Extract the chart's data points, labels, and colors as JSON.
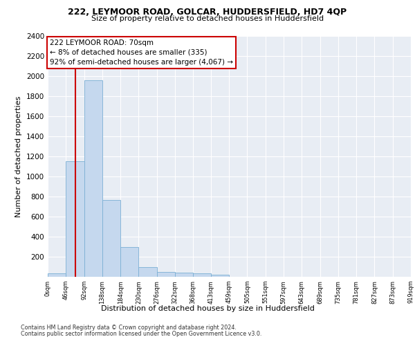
{
  "title_line1": "222, LEYMOOR ROAD, GOLCAR, HUDDERSFIELD, HD7 4QP",
  "title_line2": "Size of property relative to detached houses in Huddersfield",
  "xlabel": "Distribution of detached houses by size in Huddersfield",
  "ylabel": "Number of detached properties",
  "annotation_line1": "222 LEYMOOR ROAD: 70sqm",
  "annotation_line2": "← 8% of detached houses are smaller (335)",
  "annotation_line3": "92% of semi-detached houses are larger (4,067) →",
  "bar_color": "#c5d8ee",
  "bar_edge_color": "#7bafd4",
  "vline_color": "#cc0000",
  "vline_x": 70,
  "footnote_line1": "Contains HM Land Registry data © Crown copyright and database right 2024.",
  "footnote_line2": "Contains public sector information licensed under the Open Government Licence v3.0.",
  "bin_edges": [
    0,
    46,
    92,
    138,
    184,
    230,
    276,
    322,
    368,
    413,
    459,
    505,
    551,
    597,
    643,
    689,
    735,
    781,
    827,
    873,
    919
  ],
  "bin_labels": [
    "0sqm",
    "46sqm",
    "92sqm",
    "138sqm",
    "184sqm",
    "230sqm",
    "276sqm",
    "322sqm",
    "368sqm",
    "413sqm",
    "459sqm",
    "505sqm",
    "551sqm",
    "597sqm",
    "643sqm",
    "689sqm",
    "735sqm",
    "781sqm",
    "827sqm",
    "873sqm",
    "919sqm"
  ],
  "bar_heights": [
    35,
    1150,
    1960,
    770,
    300,
    100,
    48,
    40,
    32,
    20,
    0,
    0,
    0,
    0,
    0,
    0,
    0,
    0,
    0,
    0
  ],
  "ylim": [
    0,
    2400
  ],
  "yticks": [
    0,
    200,
    400,
    600,
    800,
    1000,
    1200,
    1400,
    1600,
    1800,
    2000,
    2200,
    2400
  ],
  "plot_bg_color": "#e8edf4"
}
